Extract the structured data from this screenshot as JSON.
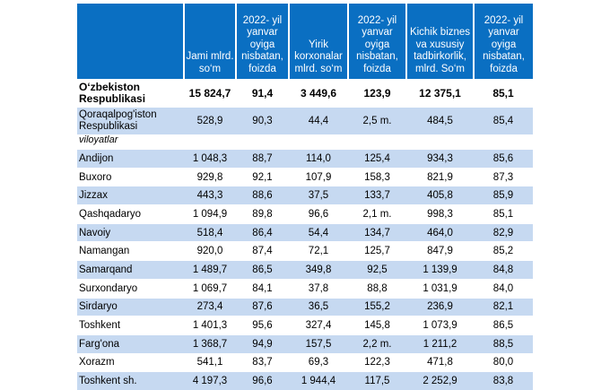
{
  "headers": [
    "",
    "Jami mlrd. so‘m",
    "2022- yil yanvar oyiga nisbatan, foizda",
    "Yirik korxonalar mlrd. so‘m",
    "2022- yil yanvar oyiga nisbatan, foizda",
    "Kichik biznes va xususiy tadbirkorlik, mlrd. So‘m",
    "2022- yil yanvar oyiga nisbatan, foizda"
  ],
  "total": [
    "O‘zbekiston Respublikasi",
    "15 824,7",
    "91,4",
    "3 449,6",
    "123,9",
    "12 375,1",
    "85,1"
  ],
  "karakalpak": [
    "Qoraqalpog'iston Respublikasi",
    "528,9",
    "90,3",
    "44,4",
    "2,5 m.",
    "484,5",
    "85,4"
  ],
  "subheader": "viloyatlar",
  "rows": [
    [
      "Andijon",
      "1 048,3",
      "88,7",
      "114,0",
      "125,4",
      "934,3",
      "85,6"
    ],
    [
      "Buxoro",
      "929,8",
      "92,1",
      "107,9",
      "158,3",
      "821,9",
      "87,3"
    ],
    [
      "Jizzax",
      "443,3",
      "88,6",
      "37,5",
      "133,7",
      "405,8",
      "85,9"
    ],
    [
      "Qashqadaryo",
      "1 094,9",
      "89,8",
      "96,6",
      "2,1 m.",
      "998,3",
      "85,1"
    ],
    [
      "Navoiy",
      "518,4",
      "86,4",
      "54,4",
      "134,7",
      "464,0",
      "82,9"
    ],
    [
      "Namangan",
      "920,0",
      "87,4",
      "72,1",
      "125,7",
      "847,9",
      "85,2"
    ],
    [
      "Samarqand",
      "1 489,7",
      "86,5",
      "349,8",
      "92,5",
      "1 139,9",
      "84,8"
    ],
    [
      "Surxondaryo",
      "1 069,7",
      "84,1",
      "37,8",
      "88,8",
      "1 031,9",
      "84,0"
    ],
    [
      "Sirdaryo",
      "273,4",
      "87,6",
      "36,5",
      "155,2",
      "236,9",
      "82,1"
    ],
    [
      "Toshkent",
      "1 401,3",
      "95,6",
      "327,4",
      "145,8",
      "1 073,9",
      "86,5"
    ],
    [
      "Farg'ona",
      "1 368,7",
      "94,9",
      "157,5",
      "2,2 m.",
      "1 211,2",
      "88,5"
    ],
    [
      " Xorazm",
      "541,1",
      "83,7",
      "69,3",
      "122,3",
      "471,8",
      "80,0"
    ],
    [
      "Toshkent sh.",
      "4 197,3",
      "96,6",
      "1 944,4",
      "117,5",
      "2 252,9",
      "83,8"
    ]
  ],
  "colors": {
    "header": "#0a6fc2",
    "shade": "#c6d9f1"
  }
}
